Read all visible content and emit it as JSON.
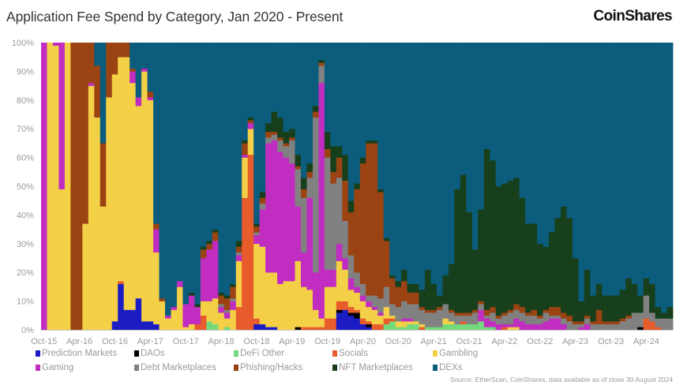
{
  "header": {
    "title": "Application Fee Spend by Category, Jan 2020 - Present",
    "logo": "CoinShares"
  },
  "source": "Source: EtherScan, CoinShares, data available as of close 30 August 2024",
  "chart_data": {
    "type": "bar",
    "stacked": true,
    "normalized_percent": true,
    "title": "Application Fee Spend by Category, Jan 2020 - Present",
    "xlabel": "",
    "ylabel": "",
    "ylim": [
      0,
      100
    ],
    "yticks": [
      "0%",
      "10%",
      "20%",
      "30%",
      "40%",
      "50%",
      "60%",
      "70%",
      "80%",
      "90%",
      "100%"
    ],
    "x_start": "Oct-15",
    "x_end": "Aug-24",
    "frequency": "monthly",
    "tick_labels": [
      "Oct-15",
      "Apr-16",
      "Oct-16",
      "Apr-17",
      "Oct-17",
      "Apr-18",
      "Oct-18",
      "Apr-19",
      "Oct-19",
      "Apr-20",
      "Oct-20",
      "Apr-21",
      "Oct-21",
      "Apr-22",
      "Oct-22",
      "Apr-23",
      "Oct-23",
      "Apr-24"
    ],
    "grid": false,
    "legend_position": "bottom",
    "series": [
      {
        "name": "Prediction Markets",
        "color": "#1c1cc4"
      },
      {
        "name": "DAOs",
        "color": "#000000"
      },
      {
        "name": "DeFi Other",
        "color": "#72d97c"
      },
      {
        "name": "Socials",
        "color": "#e85b2b"
      },
      {
        "name": "Gambling",
        "color": "#f3d046"
      },
      {
        "name": "Gaming",
        "color": "#c12cc1"
      },
      {
        "name": "Debt Marketplaces",
        "color": "#818181"
      },
      {
        "name": "Phishing/Hacks",
        "color": "#9b4312"
      },
      {
        "name": "NFT Marketplaces",
        "color": "#173f1b"
      },
      {
        "name": "DEXs",
        "color": "#0b5c7d"
      }
    ],
    "values_by_month": [
      [
        0,
        0,
        0,
        0,
        0,
        100,
        0,
        0,
        0,
        0
      ],
      [
        0,
        0,
        0,
        0,
        100,
        0,
        0,
        0,
        0,
        0
      ],
      [
        0,
        0,
        0,
        0,
        99,
        1,
        0,
        0,
        0,
        0
      ],
      [
        0,
        0,
        0,
        0,
        49,
        51,
        0,
        0,
        0,
        0
      ],
      [
        0,
        0,
        0,
        0,
        100,
        0,
        0,
        0,
        0,
        0
      ],
      [
        0,
        0,
        0,
        0,
        0,
        0,
        0,
        100,
        0,
        0
      ],
      [
        0,
        0,
        0,
        0,
        0,
        0,
        0,
        100,
        0,
        0
      ],
      [
        0,
        0,
        0,
        0,
        37,
        0,
        0,
        63,
        0,
        0
      ],
      [
        0,
        0,
        0,
        0,
        85,
        1,
        0,
        14,
        0,
        0
      ],
      [
        0,
        0,
        0,
        0,
        74,
        0,
        0,
        18,
        0,
        8
      ],
      [
        0,
        0,
        0,
        0,
        43,
        0,
        0,
        22,
        0,
        35
      ],
      [
        0,
        0,
        0,
        0,
        81,
        0,
        0,
        19,
        0,
        0
      ],
      [
        3,
        0,
        0,
        0,
        86,
        0,
        0,
        11,
        0,
        0
      ],
      [
        16,
        0,
        0,
        1,
        78,
        0,
        0,
        5,
        0,
        0
      ],
      [
        7,
        0,
        0,
        0,
        88,
        0,
        0,
        5,
        0,
        0
      ],
      [
        7,
        0,
        0,
        0,
        79,
        4,
        0,
        1,
        0,
        9
      ],
      [
        11,
        0,
        0,
        0,
        67,
        3,
        0,
        0,
        0,
        19
      ],
      [
        3,
        0,
        0,
        0,
        87,
        1,
        0,
        0,
        0,
        9
      ],
      [
        3,
        0,
        0,
        0,
        77,
        1,
        0,
        2,
        0,
        17
      ],
      [
        2,
        0,
        0,
        0,
        25,
        8,
        0,
        2,
        0,
        63
      ],
      [
        0,
        0,
        0,
        0,
        10,
        0,
        0,
        1,
        0,
        89
      ],
      [
        0,
        0,
        0,
        0,
        4,
        1,
        0,
        0,
        0,
        95
      ],
      [
        0,
        0,
        0,
        0,
        7,
        1,
        0,
        0,
        0,
        92
      ],
      [
        0,
        0,
        0,
        0,
        15,
        2,
        0,
        0,
        0,
        83
      ],
      [
        0,
        0,
        0,
        0,
        1,
        8,
        0,
        0,
        0,
        91
      ],
      [
        0,
        0,
        0,
        0,
        2,
        10,
        0,
        0,
        1,
        87
      ],
      [
        0,
        0,
        0,
        2,
        0,
        6,
        0,
        0,
        1,
        91
      ],
      [
        0,
        0,
        0,
        5,
        5,
        15,
        0,
        3,
        1,
        71
      ],
      [
        0,
        0,
        3,
        0,
        7,
        18,
        0,
        2,
        1,
        69
      ],
      [
        0,
        0,
        2,
        0,
        9,
        20,
        0,
        3,
        1,
        65
      ],
      [
        0,
        0,
        0,
        0,
        6,
        2,
        1,
        3,
        1,
        87
      ],
      [
        0,
        0,
        1,
        0,
        3,
        2,
        1,
        4,
        1,
        88
      ],
      [
        0,
        0,
        0,
        0,
        7,
        3,
        1,
        4,
        1,
        84
      ],
      [
        0,
        0,
        0,
        8,
        16,
        2,
        1,
        2,
        2,
        69
      ],
      [
        0,
        0,
        0,
        46,
        14,
        1,
        0,
        4,
        1,
        34
      ],
      [
        0,
        0,
        0,
        61,
        9,
        2,
        0,
        1,
        1,
        26
      ],
      [
        2,
        0,
        0,
        2,
        26,
        3,
        1,
        2,
        1,
        63
      ],
      [
        2,
        0,
        0,
        0,
        27,
        13,
        2,
        2,
        2,
        52
      ],
      [
        1,
        0,
        0,
        0,
        19,
        45,
        2,
        2,
        3,
        28
      ],
      [
        1,
        0,
        0,
        0,
        19,
        46,
        2,
        1,
        7,
        24
      ],
      [
        0,
        0,
        0,
        0,
        16,
        46,
        4,
        1,
        7,
        26
      ],
      [
        0,
        0,
        0,
        0,
        17,
        43,
        4,
        1,
        4,
        31
      ],
      [
        0,
        0,
        0,
        0,
        17,
        41,
        8,
        1,
        3,
        30
      ],
      [
        0,
        1,
        0,
        0,
        23,
        19,
        13,
        1,
        4,
        39
      ],
      [
        0,
        0,
        0,
        1,
        14,
        12,
        19,
        3,
        4,
        47
      ],
      [
        0,
        0,
        0,
        1,
        13,
        32,
        7,
        2,
        3,
        42
      ],
      [
        0,
        0,
        0,
        1,
        6,
        13,
        54,
        2,
        2,
        22
      ],
      [
        0,
        0,
        0,
        1,
        3,
        82,
        6,
        1,
        1,
        6
      ],
      [
        0,
        0,
        0,
        4,
        11,
        6,
        39,
        3,
        6,
        31
      ],
      [
        0,
        0,
        0,
        4,
        11,
        6,
        30,
        4,
        9,
        36
      ],
      [
        6,
        1,
        0,
        3,
        14,
        6,
        23,
        7,
        4,
        36
      ],
      [
        7,
        0,
        0,
        3,
        11,
        4,
        13,
        14,
        9,
        39
      ],
      [
        5,
        1,
        0,
        2,
        6,
        4,
        8,
        15,
        4,
        55
      ],
      [
        4,
        2,
        0,
        1,
        6,
        2,
        5,
        29,
        2,
        49
      ],
      [
        2,
        0,
        0,
        2,
        6,
        2,
        4,
        42,
        2,
        40
      ],
      [
        1,
        1,
        0,
        1,
        5,
        2,
        2,
        53,
        1,
        34
      ],
      [
        0,
        0,
        0,
        2,
        5,
        1,
        4,
        53,
        1,
        34
      ],
      [
        0,
        0,
        0,
        2,
        3,
        1,
        5,
        37,
        1,
        51
      ],
      [
        0,
        0,
        2,
        2,
        4,
        0,
        7,
        16,
        1,
        68
      ],
      [
        0,
        0,
        3,
        1,
        1,
        0,
        4,
        9,
        1,
        81
      ],
      [
        0,
        0,
        1,
        0,
        2,
        0,
        5,
        7,
        2,
        83
      ],
      [
        0,
        0,
        1,
        0,
        2,
        1,
        6,
        7,
        4,
        79
      ],
      [
        0,
        0,
        2,
        0,
        1,
        1,
        5,
        4,
        3,
        84
      ],
      [
        0,
        0,
        2,
        0,
        1,
        0,
        6,
        4,
        3,
        84
      ],
      [
        0,
        0,
        0,
        1,
        1,
        0,
        5,
        1,
        6,
        86
      ],
      [
        0,
        0,
        1,
        0,
        0,
        0,
        5,
        1,
        14,
        79
      ],
      [
        0,
        0,
        1,
        0,
        0,
        0,
        5,
        1,
        9,
        84
      ],
      [
        0,
        0,
        1,
        0,
        0,
        0,
        6,
        1,
        4,
        88
      ],
      [
        0,
        0,
        2,
        0,
        2,
        0,
        5,
        0,
        10,
        81
      ],
      [
        0,
        0,
        2,
        0,
        1,
        0,
        3,
        1,
        16,
        77
      ],
      [
        0,
        0,
        2,
        0,
        0,
        0,
        3,
        1,
        43,
        51
      ],
      [
        0,
        0,
        2,
        1,
        0,
        0,
        2,
        1,
        48,
        46
      ],
      [
        0,
        0,
        2,
        0,
        0,
        0,
        3,
        1,
        35,
        59
      ],
      [
        0,
        0,
        2,
        0,
        0,
        0,
        4,
        1,
        21,
        72
      ],
      [
        0,
        0,
        3,
        0,
        0,
        4,
        2,
        1,
        32,
        58
      ],
      [
        0,
        0,
        1,
        0,
        0,
        3,
        1,
        2,
        56,
        37
      ],
      [
        0,
        0,
        1,
        0,
        0,
        2,
        3,
        2,
        51,
        41
      ],
      [
        0,
        0,
        0,
        0,
        0,
        2,
        2,
        1,
        45,
        50
      ],
      [
        0,
        0,
        0,
        1,
        0,
        1,
        3,
        1,
        45,
        49
      ],
      [
        0,
        0,
        0,
        0,
        1,
        1,
        4,
        1,
        45,
        48
      ],
      [
        0,
        0,
        0,
        0,
        1,
        3,
        3,
        2,
        44,
        47
      ],
      [
        0,
        0,
        0,
        0,
        0,
        3,
        3,
        2,
        38,
        54
      ],
      [
        0,
        0,
        0,
        0,
        0,
        2,
        3,
        1,
        31,
        63
      ],
      [
        0,
        0,
        0,
        0,
        0,
        2,
        3,
        2,
        30,
        63
      ],
      [
        0,
        0,
        0,
        0,
        0,
        2,
        2,
        1,
        25,
        70
      ],
      [
        0,
        0,
        0,
        0,
        0,
        3,
        3,
        1,
        22,
        71
      ],
      [
        0,
        0,
        0,
        0,
        0,
        4,
        1,
        3,
        26,
        66
      ],
      [
        0,
        0,
        0,
        0,
        0,
        4,
        1,
        3,
        31,
        61
      ],
      [
        0,
        0,
        0,
        0,
        0,
        2,
        2,
        2,
        37,
        57
      ],
      [
        0,
        0,
        0,
        0,
        0,
        0,
        3,
        2,
        34,
        61
      ],
      [
        0,
        0,
        0,
        0,
        0,
        0,
        2,
        1,
        22,
        75
      ],
      [
        0,
        0,
        0,
        0,
        0,
        1,
        1,
        1,
        7,
        90
      ],
      [
        0,
        0,
        0,
        0,
        0,
        2,
        2,
        1,
        16,
        79
      ],
      [
        0,
        0,
        0,
        0,
        0,
        0,
        2,
        1,
        9,
        88
      ],
      [
        0,
        0,
        0,
        0,
        0,
        0,
        2,
        5,
        9,
        84
      ],
      [
        0,
        0,
        0,
        0,
        0,
        0,
        2,
        1,
        9,
        88
      ],
      [
        0,
        0,
        0,
        0,
        0,
        0,
        2,
        1,
        9,
        88
      ],
      [
        0,
        0,
        0,
        0,
        0,
        0,
        2,
        1,
        9,
        88
      ],
      [
        0,
        0,
        0,
        0,
        0,
        0,
        3,
        1,
        10,
        86
      ],
      [
        0,
        0,
        0,
        0,
        0,
        0,
        4,
        1,
        13,
        82
      ],
      [
        0,
        0,
        0,
        0,
        0,
        0,
        6,
        0,
        10,
        84
      ],
      [
        0,
        1,
        0,
        0,
        0,
        0,
        5,
        0,
        6,
        88
      ],
      [
        0,
        0,
        0,
        4,
        0,
        0,
        8,
        0,
        6,
        82
      ],
      [
        0,
        0,
        0,
        3,
        0,
        0,
        3,
        0,
        10,
        84
      ],
      [
        0,
        0,
        0,
        1,
        0,
        0,
        3,
        0,
        4,
        92
      ],
      [
        0,
        0,
        0,
        0,
        0,
        0,
        4,
        0,
        2,
        94
      ],
      [
        0,
        0,
        0,
        0,
        0,
        0,
        4,
        0,
        4,
        92
      ]
    ]
  }
}
